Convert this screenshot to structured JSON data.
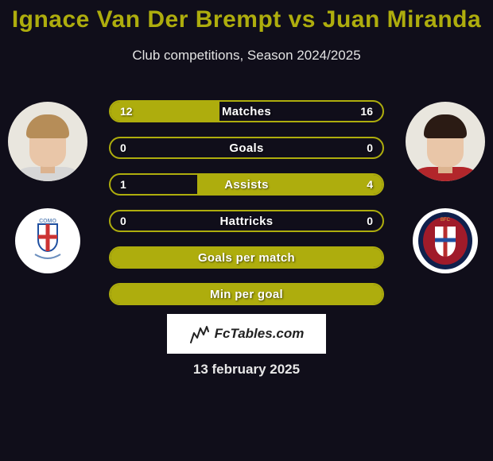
{
  "title": "Ignace Van Der Brempt vs Juan Miranda",
  "subtitle": "Club competitions, Season 2024/2025",
  "date": "13 february 2025",
  "accent_color": "#aead0d",
  "background_color": "#100e1a",
  "badge": {
    "text": "FcTables.com"
  },
  "player_left": {
    "hair_color": "#b68d58",
    "shirt_color": "#d6d6d6",
    "club_name": "Como"
  },
  "player_right": {
    "hair_color": "#2b1b14",
    "shirt_color": "#b2262b",
    "club_name": "Bologna"
  },
  "bars": [
    {
      "label": "Matches",
      "left_val": "12",
      "right_val": "16",
      "left_pct": 40,
      "right_pct": 0
    },
    {
      "label": "Goals",
      "left_val": "0",
      "right_val": "0",
      "left_pct": 0,
      "right_pct": 0
    },
    {
      "label": "Assists",
      "left_val": "1",
      "right_val": "4",
      "left_pct": 0,
      "right_pct": 68
    },
    {
      "label": "Hattricks",
      "left_val": "0",
      "right_val": "0",
      "left_pct": 0,
      "right_pct": 0
    },
    {
      "label": "Goals per match",
      "left_val": "",
      "right_val": "",
      "left_pct": 100,
      "right_pct": 0
    },
    {
      "label": "Min per goal",
      "left_val": "",
      "right_val": "",
      "left_pct": 100,
      "right_pct": 0
    }
  ]
}
